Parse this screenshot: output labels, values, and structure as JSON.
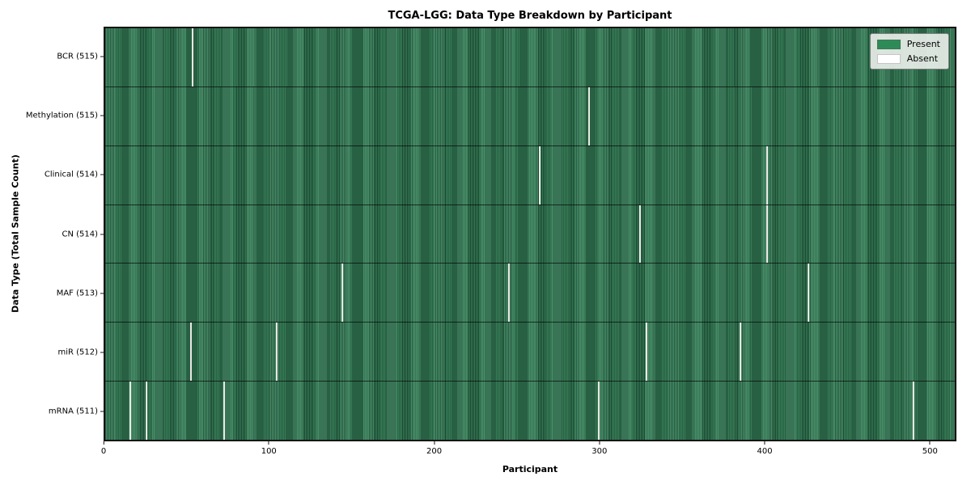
{
  "colors": {
    "present": "#2e8b57",
    "absent": "#ffffff",
    "absent_line": "#e9e9e3",
    "stripe_dark": "#1b4c34",
    "stripe_light": "#3d8a61",
    "legend_background": "#e8eee8",
    "axis": "#141414"
  },
  "legend": {
    "items": [
      {
        "label": "Present",
        "color": "#2e8b57"
      },
      {
        "label": "Absent",
        "color": "#ffffff"
      }
    ]
  },
  "chart_data": {
    "type": "heatmap",
    "title": "TCGA-LGG: Data Type Breakdown by Participant",
    "xlabel": "Participant",
    "ylabel": "Data Type (Total Sample Count)",
    "x_range": [
      0,
      516
    ],
    "x_ticks": [
      0,
      100,
      200,
      300,
      400,
      500
    ],
    "grid": false,
    "legend": [
      "Present",
      "Absent"
    ],
    "legend_position": "upper right",
    "value_encoding": {
      "present": "green cell",
      "absent": "white cell"
    },
    "rows": [
      {
        "label": "BCR (515)",
        "data_type": "BCR",
        "total_samples": 515,
        "absent_participants": [
          53
        ]
      },
      {
        "label": "Methylation (515)",
        "data_type": "Methylation",
        "total_samples": 515,
        "absent_participants": [
          294
        ]
      },
      {
        "label": "Clinical (514)",
        "data_type": "Clinical",
        "total_samples": 514,
        "absent_participants": [
          264,
          402
        ]
      },
      {
        "label": "CN (514)",
        "data_type": "CN",
        "total_samples": 514,
        "absent_participants": [
          325,
          402
        ]
      },
      {
        "label": "MAF (513)",
        "data_type": "MAF",
        "total_samples": 513,
        "absent_participants": [
          144,
          245,
          427
        ]
      },
      {
        "label": "miR (512)",
        "data_type": "miR",
        "total_samples": 512,
        "absent_participants": [
          52,
          104,
          329,
          386
        ]
      },
      {
        "label": "mRNA (511)",
        "data_type": "mRNA",
        "total_samples": 511,
        "absent_participants": [
          15,
          25,
          72,
          300,
          491
        ]
      }
    ]
  }
}
